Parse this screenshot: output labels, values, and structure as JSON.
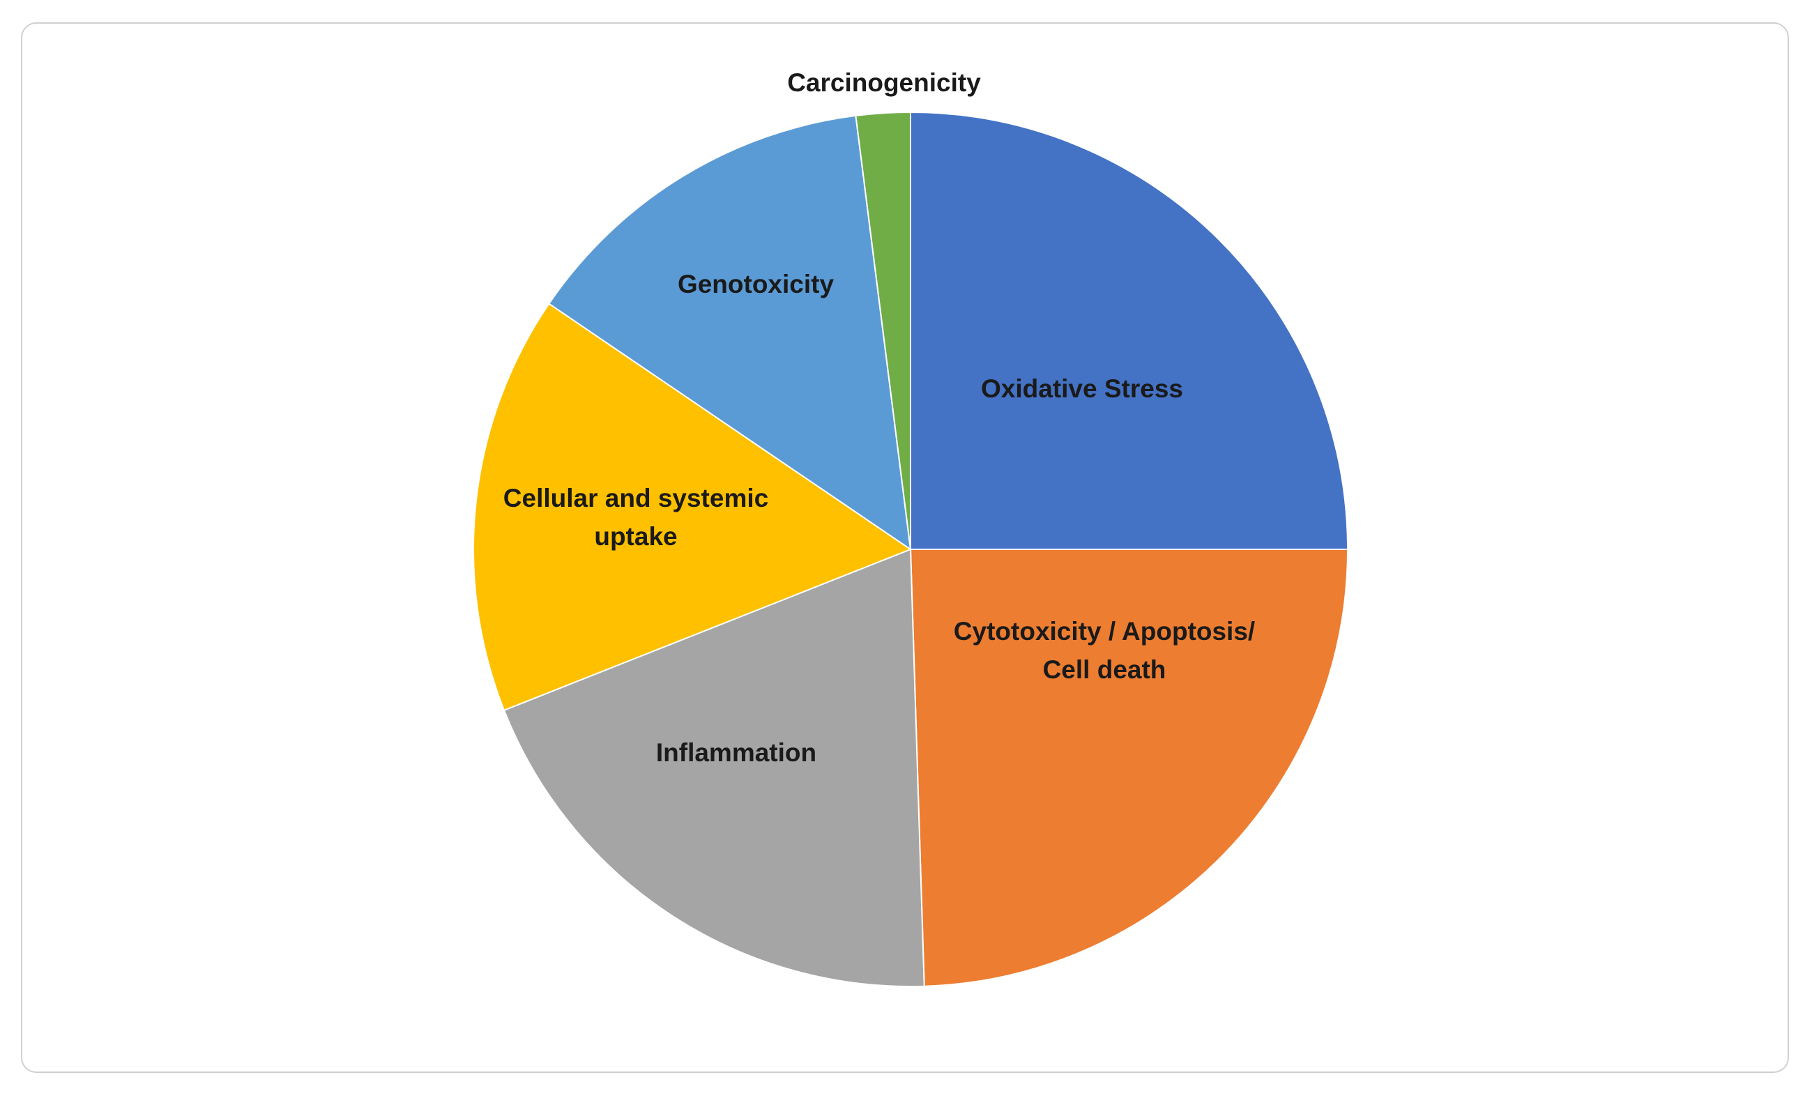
{
  "chart_data": {
    "type": "pie",
    "title": "",
    "start": "12 o'clock",
    "direction": "clockwise",
    "slices": [
      {
        "label_lines": [
          "Oxidative Stress"
        ],
        "value": 25.0,
        "color": "#4472C4"
      },
      {
        "label_lines": [
          "Cytotoxicity / Apoptosis/",
          "Cell death"
        ],
        "value": 24.5,
        "color": "#ED7D31"
      },
      {
        "label_lines": [
          "Inflammation"
        ],
        "value": 19.5,
        "color": "#A5A5A5"
      },
      {
        "label_lines": [
          "Cellular and systemic",
          "uptake"
        ],
        "value": 15.5,
        "color": "#FFC000"
      },
      {
        "label_lines": [
          "Genotoxicity"
        ],
        "value": 13.5,
        "color": "#5B9BD5"
      },
      {
        "label_lines": [
          "Carcinogenicity"
        ],
        "value": 2.0,
        "color": "#70AD47"
      }
    ],
    "legend": "none"
  }
}
